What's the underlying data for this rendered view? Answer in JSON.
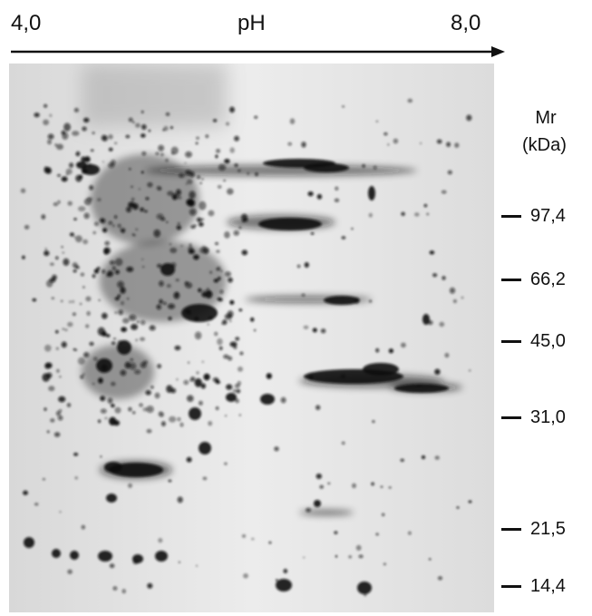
{
  "ph_axis": {
    "start": "4,0",
    "title": "pH",
    "end": "8,0"
  },
  "mr_axis": {
    "title": "Mr",
    "unit": "(kDa)",
    "markers": [
      {
        "label": "97,4"
      },
      {
        "label": "66,2"
      },
      {
        "label": "45,0"
      },
      {
        "label": "31,0"
      },
      {
        "label": "21,5"
      },
      {
        "label": "14,4"
      }
    ]
  },
  "colors": {
    "gel_background": "#e6e6e6",
    "spot": "#0d0d0d",
    "text": "#111111"
  }
}
